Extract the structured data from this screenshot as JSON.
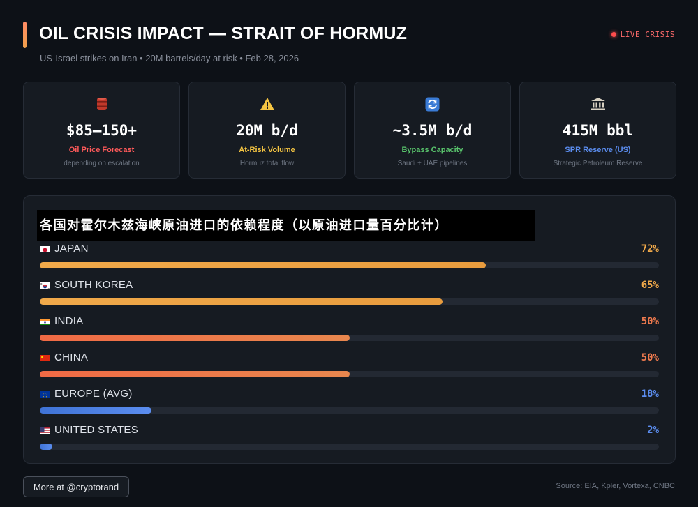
{
  "header": {
    "title": "OIL CRISIS IMPACT — STRAIT OF HORMUZ",
    "subtitle": "US-Israel strikes on Iran • 20M barrels/day at risk • Feb 28, 2026",
    "live_label": "LIVE CRISIS"
  },
  "cards": [
    {
      "icon": "oil-barrel-icon",
      "value": "$85–150+",
      "label": "Oil Price Forecast",
      "sub": "depending on escalation",
      "color": "#ff5a5a"
    },
    {
      "icon": "warning-icon",
      "value": "20M b/d",
      "label": "At-Risk Volume",
      "sub": "Hormuz total flow",
      "color": "#f5c542"
    },
    {
      "icon": "refresh-icon",
      "value": "~3.5M b/d",
      "label": "Bypass Capacity",
      "sub": "Saudi + UAE pipelines",
      "color": "#58c26b"
    },
    {
      "icon": "bank-icon",
      "value": "415M bbl",
      "label": "SPR Reserve (US)",
      "sub": "Strategic Petroleum Reserve",
      "color": "#5b8def"
    }
  ],
  "chart_data": {
    "type": "bar",
    "orientation": "horizontal",
    "title": "各国对霍尔木兹海峡原油进口的依赖程度（以原油进口量百分比计）",
    "categories": [
      "JAPAN",
      "SOUTH KOREA",
      "INDIA",
      "CHINA",
      "EUROPE (AVG)",
      "UNITED STATES"
    ],
    "values": [
      72,
      65,
      50,
      50,
      18,
      2
    ],
    "value_labels": [
      "72%",
      "65%",
      "50%",
      "50%",
      "18%",
      "2%"
    ],
    "xlim": [
      0,
      100
    ],
    "colors": [
      "#f0a94a",
      "#f0a94a",
      "#ef7a4e",
      "#ef7a4e",
      "#5b8def",
      "#5b8def"
    ],
    "flags": [
      "japan-flag-icon",
      "south-korea-flag-icon",
      "india-flag-icon",
      "china-flag-icon",
      "eu-flag-icon",
      "us-flag-icon"
    ]
  },
  "footer": {
    "button_label": "More at @cryptorand",
    "source": "Source: EIA, Kpler, Vortexa, CNBC"
  }
}
